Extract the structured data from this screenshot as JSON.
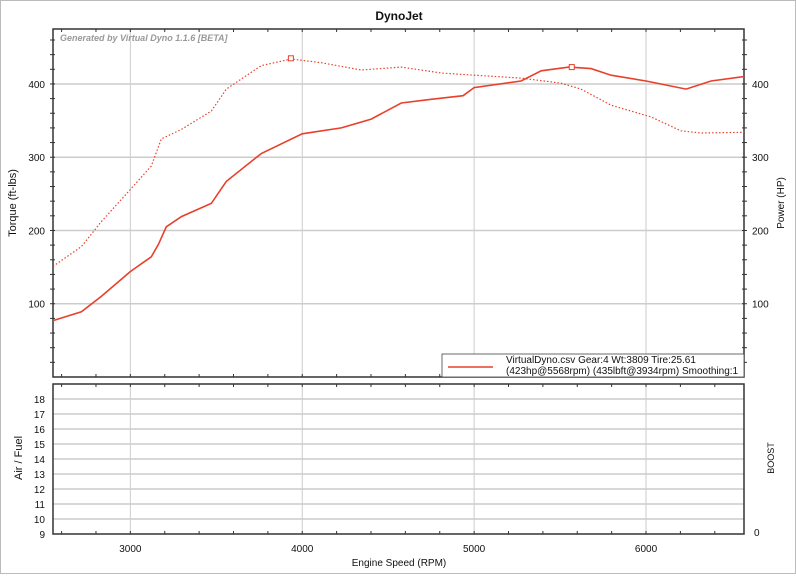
{
  "chart_data": [
    {
      "type": "line",
      "title": "DynoJet",
      "watermark": "Generated by Virtual Dyno 1.1.6 [BETA]",
      "ylabel": "Torque (ft-lbs)",
      "ylabel_right": "Power (HP)",
      "xlim": [
        2550,
        6570
      ],
      "ylim": [
        0,
        475
      ],
      "ylim_right": [
        0,
        475
      ],
      "x_ticks": [
        "3000",
        "4000",
        "5000",
        "6000"
      ],
      "y_ticks": [
        "100",
        "200",
        "300",
        "400"
      ],
      "y_ticks_right": [
        "100",
        "200",
        "300",
        "400"
      ],
      "grid": true,
      "legend_position": "bottom-right",
      "legend": {
        "line1": "VirtualDyno.csv Gear:4 Wt:3809 Tire:25.61",
        "line2": "(423hp@5568rpm) (435lbft@3934rpm) Smoothing:1"
      },
      "color": "#e8402a",
      "series": [
        {
          "axis": "right",
          "style": "solid",
          "peak": {
            "x": 5568,
            "y": 423
          },
          "x": [
            2550,
            2715,
            2831,
            3000,
            3122,
            3163,
            3209,
            3297,
            3471,
            3558,
            3762,
            4000,
            4227,
            4401,
            4576,
            4750,
            4936,
            5000,
            5273,
            5390,
            5552,
            5680,
            5797,
            6000,
            6233,
            6378,
            6570
          ],
          "y": [
            77,
            89,
            110,
            144,
            164,
            181,
            205,
            219,
            237,
            267,
            305,
            332,
            340,
            352,
            374,
            379,
            384,
            395,
            404,
            418,
            423,
            421,
            412,
            404,
            393,
            404,
            410
          ]
        },
        {
          "axis": "left",
          "style": "dotted",
          "peak": {
            "x": 3934,
            "y": 435
          },
          "x": [
            2550,
            2715,
            2831,
            3000,
            3122,
            3180,
            3297,
            3471,
            3558,
            3762,
            3936,
            4110,
            4343,
            4576,
            4808,
            5000,
            5273,
            5506,
            5622,
            5797,
            6029,
            6203,
            6320,
            6570
          ],
          "y": [
            151,
            178,
            212,
            256,
            288,
            325,
            338,
            363,
            393,
            425,
            434,
            429,
            419,
            423,
            415,
            412,
            408,
            401,
            393,
            371,
            355,
            336,
            333,
            334
          ]
        }
      ]
    },
    {
      "type": "line",
      "ylabel": "Air / Fuel",
      "ylabel_right": "BOOST",
      "xlabel": "Engine Speed (RPM)",
      "xlim": [
        2550,
        6570
      ],
      "ylim": [
        9,
        19
      ],
      "y_ticks": [
        "9",
        "10",
        "11",
        "12",
        "13",
        "14",
        "15",
        "16",
        "17",
        "18"
      ],
      "y_ticks_right": [
        "0"
      ],
      "x_ticks": [
        "3000",
        "4000",
        "5000",
        "6000"
      ],
      "grid": true,
      "series": []
    }
  ]
}
